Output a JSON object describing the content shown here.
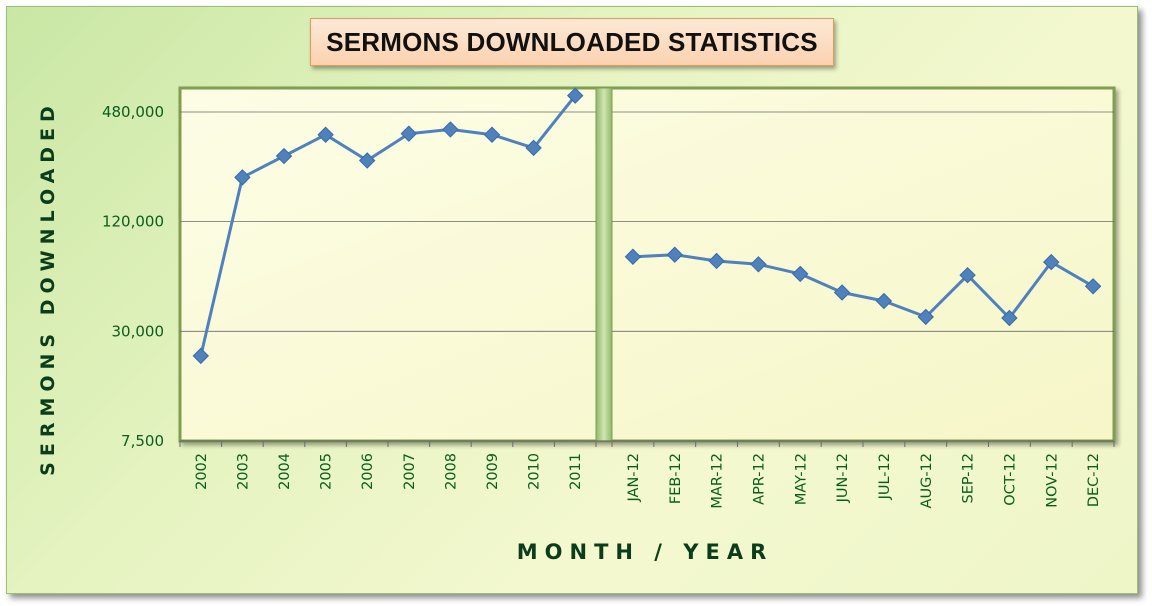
{
  "chart_data": {
    "type": "line",
    "title": "SERMONS DOWNLOADED STATISTICS",
    "xlabel": "MONTH / YEAR",
    "ylabel": "SERMONS DOWNLOADED",
    "y_scale": "log",
    "ylim": [
      7500,
      650000
    ],
    "yticks": [
      7500,
      30000,
      120000,
      480000
    ],
    "ytick_labels": [
      "7,500",
      "30,000",
      "120,000",
      "480,000"
    ],
    "grid": true,
    "colors": {
      "line": "#4f81bd",
      "marker": "#4f81bd",
      "plot_bg": "#fbfbd9",
      "text": "#0b5d1e"
    },
    "panels": [
      {
        "name": "",
        "categories": [
          "2002",
          "2003",
          "2004",
          "2005",
          "2006",
          "2007",
          "2008",
          "2009",
          "2010",
          "2011"
        ],
        "values": [
          22000,
          210000,
          275000,
          360000,
          260000,
          365000,
          385000,
          360000,
          305000,
          590000
        ]
      },
      {
        "name": "",
        "categories": [
          "JAN-12",
          "FEB-12",
          "MAR-12",
          "APR-12",
          "MAY-12",
          "JUN-12",
          "JUL-12",
          "AUG-12",
          "SEP-12",
          "OCT-12",
          "NOV-12",
          "DEC-12"
        ],
        "values": [
          77000,
          79000,
          73000,
          70000,
          62000,
          49000,
          44000,
          36000,
          61000,
          35500,
          72000,
          53000
        ]
      }
    ]
  }
}
